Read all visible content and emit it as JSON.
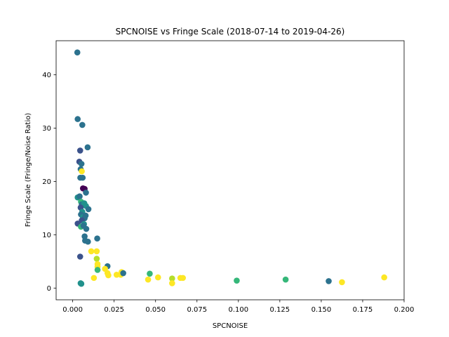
{
  "chart_data": {
    "type": "scatter",
    "title": "SPCNOISE vs Fringe Scale (2018-07-14 to 2019-04-26)",
    "xlabel": "SPCNOISE",
    "ylabel": "Fringe Scale (Fringe/Noise Ratio)",
    "xlim": [
      -0.01,
      0.2
    ],
    "ylim": [
      -2.2,
      46.4
    ],
    "xticks": [
      0.0,
      0.025,
      0.05,
      0.075,
      0.1,
      0.125,
      0.15,
      0.175,
      0.2
    ],
    "xtick_labels": [
      "0.000",
      "0.025",
      "0.050",
      "0.075",
      "0.100",
      "0.125",
      "0.150",
      "0.175",
      "0.200"
    ],
    "yticks": [
      0,
      10,
      20,
      30,
      40
    ],
    "ytick_labels": [
      "0",
      "10",
      "20",
      "30",
      "40"
    ],
    "grid": false,
    "legend": "none",
    "colormap": "viridis",
    "points": [
      {
        "x": 0.0028,
        "y": 44.2,
        "c": "#2c728e"
      },
      {
        "x": 0.003,
        "y": 31.7,
        "c": "#2c728e"
      },
      {
        "x": 0.0058,
        "y": 30.6,
        "c": "#2c728e"
      },
      {
        "x": 0.009,
        "y": 26.4,
        "c": "#2c728e"
      },
      {
        "x": 0.0045,
        "y": 25.8,
        "c": "#3b528b"
      },
      {
        "x": 0.004,
        "y": 23.7,
        "c": "#3b528b"
      },
      {
        "x": 0.0053,
        "y": 23.3,
        "c": "#2c728e"
      },
      {
        "x": 0.0048,
        "y": 22.3,
        "c": "#2c728e"
      },
      {
        "x": 0.0055,
        "y": 21.9,
        "c": "#fde725"
      },
      {
        "x": 0.0046,
        "y": 20.7,
        "c": "#2c728e"
      },
      {
        "x": 0.006,
        "y": 20.7,
        "c": "#2c728e"
      },
      {
        "x": 0.0062,
        "y": 18.7,
        "c": "#440154"
      },
      {
        "x": 0.0072,
        "y": 18.6,
        "c": "#440154"
      },
      {
        "x": 0.008,
        "y": 17.9,
        "c": "#2c728e"
      },
      {
        "x": 0.003,
        "y": 17.0,
        "c": "#21918c"
      },
      {
        "x": 0.0042,
        "y": 17.2,
        "c": "#2c728e"
      },
      {
        "x": 0.005,
        "y": 16.2,
        "c": "#35b779"
      },
      {
        "x": 0.0055,
        "y": 15.7,
        "c": "#2c728e"
      },
      {
        "x": 0.007,
        "y": 15.9,
        "c": "#21918c"
      },
      {
        "x": 0.008,
        "y": 15.4,
        "c": "#21918c"
      },
      {
        "x": 0.0048,
        "y": 15.1,
        "c": "#3b528b"
      },
      {
        "x": 0.0095,
        "y": 14.8,
        "c": "#2c728e"
      },
      {
        "x": 0.0058,
        "y": 14.3,
        "c": "#21918c"
      },
      {
        "x": 0.005,
        "y": 13.8,
        "c": "#2c728e"
      },
      {
        "x": 0.0062,
        "y": 13.3,
        "c": "#21918c"
      },
      {
        "x": 0.0072,
        "y": 13.1,
        "c": "#2c728e"
      },
      {
        "x": 0.0078,
        "y": 13.6,
        "c": "#2c728e"
      },
      {
        "x": 0.0055,
        "y": 12.7,
        "c": "#3b528b"
      },
      {
        "x": 0.003,
        "y": 12.1,
        "c": "#3b528b"
      },
      {
        "x": 0.0068,
        "y": 12.0,
        "c": "#21918c"
      },
      {
        "x": 0.005,
        "y": 11.5,
        "c": "#35b779"
      },
      {
        "x": 0.0065,
        "y": 11.7,
        "c": "#2c728e"
      },
      {
        "x": 0.0082,
        "y": 11.1,
        "c": "#2c728e"
      },
      {
        "x": 0.0072,
        "y": 9.7,
        "c": "#2c728e"
      },
      {
        "x": 0.0148,
        "y": 9.3,
        "c": "#2c728e"
      },
      {
        "x": 0.0075,
        "y": 8.9,
        "c": "#2c728e"
      },
      {
        "x": 0.0092,
        "y": 8.7,
        "c": "#2c728e"
      },
      {
        "x": 0.0112,
        "y": 6.9,
        "c": "#fde725"
      },
      {
        "x": 0.0145,
        "y": 6.9,
        "c": "#fde725"
      },
      {
        "x": 0.0045,
        "y": 5.9,
        "c": "#3b528b"
      },
      {
        "x": 0.0145,
        "y": 5.5,
        "c": "#b5de2b"
      },
      {
        "x": 0.015,
        "y": 4.5,
        "c": "#fde725"
      },
      {
        "x": 0.015,
        "y": 4.0,
        "c": "#fde725"
      },
      {
        "x": 0.015,
        "y": 3.4,
        "c": "#35b779"
      },
      {
        "x": 0.021,
        "y": 4.1,
        "c": "#2c728e"
      },
      {
        "x": 0.0195,
        "y": 3.6,
        "c": "#fde725"
      },
      {
        "x": 0.021,
        "y": 2.8,
        "c": "#fde725"
      },
      {
        "x": 0.0215,
        "y": 2.4,
        "c": "#fde725"
      },
      {
        "x": 0.0265,
        "y": 2.5,
        "c": "#fde725"
      },
      {
        "x": 0.029,
        "y": 2.5,
        "c": "#fde725"
      },
      {
        "x": 0.0295,
        "y": 3.0,
        "c": "#fde725"
      },
      {
        "x": 0.0305,
        "y": 2.8,
        "c": "#2c728e"
      },
      {
        "x": 0.0128,
        "y": 1.9,
        "c": "#fde725"
      },
      {
        "x": 0.0455,
        "y": 1.6,
        "c": "#fde725"
      },
      {
        "x": 0.0465,
        "y": 2.7,
        "c": "#35b779"
      },
      {
        "x": 0.0515,
        "y": 2.0,
        "c": "#fde725"
      },
      {
        "x": 0.06,
        "y": 1.8,
        "c": "#b5de2b"
      },
      {
        "x": 0.06,
        "y": 0.9,
        "c": "#fde725"
      },
      {
        "x": 0.065,
        "y": 1.9,
        "c": "#fde725"
      },
      {
        "x": 0.0665,
        "y": 1.9,
        "c": "#fde725"
      },
      {
        "x": 0.0048,
        "y": 0.9,
        "c": "#21918c"
      },
      {
        "x": 0.0052,
        "y": 0.8,
        "c": "#21918c"
      },
      {
        "x": 0.099,
        "y": 1.4,
        "c": "#35b779"
      },
      {
        "x": 0.1285,
        "y": 1.6,
        "c": "#35b779"
      },
      {
        "x": 0.1545,
        "y": 1.3,
        "c": "#2c728e"
      },
      {
        "x": 0.1625,
        "y": 1.1,
        "c": "#fde725"
      },
      {
        "x": 0.188,
        "y": 2.0,
        "c": "#fde725"
      }
    ]
  }
}
